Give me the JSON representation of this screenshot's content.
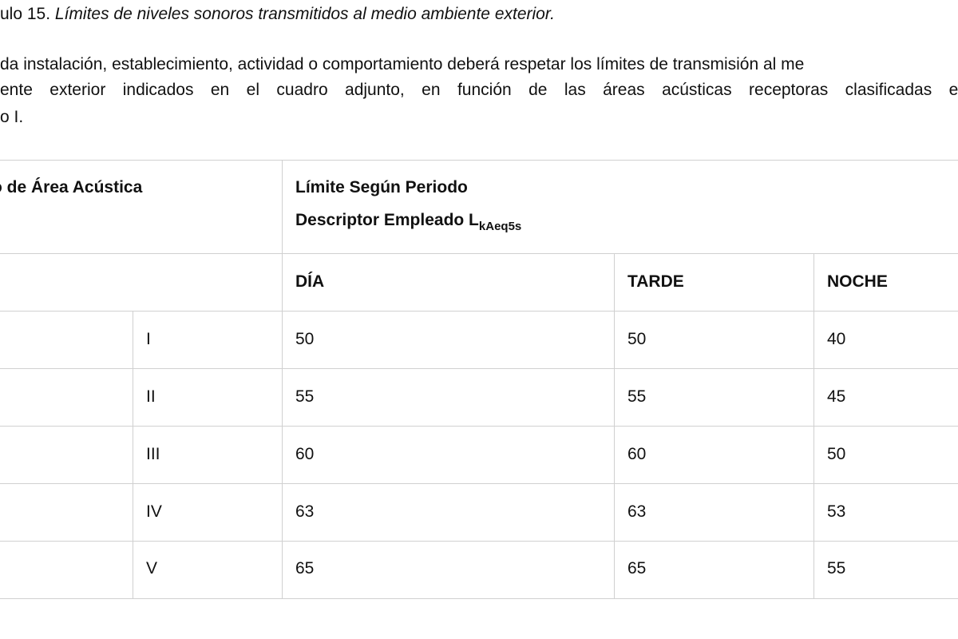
{
  "document": {
    "title_prefix": "ulo 15. ",
    "title_italic": "Límites de niveles sonoros transmitidos al medio ambiente exterior.",
    "paragraph_lines": [
      "da instalación, establecimiento, actividad o comportamiento deberá respetar los límites de transmisión al me",
      "ente exterior indicados en el cuadro adjunto, en función de las áreas acústicas receptoras clasificadas en",
      "o I."
    ]
  },
  "table": {
    "area_header": "o de Área Acústica",
    "limit_header_line1": "Límite Según Periodo",
    "limit_header_line2_main": "Descriptor Empleado L",
    "limit_header_line2_sub": "kAeq5s",
    "period_headers": [
      "DÍA",
      "TARDE",
      "NOCHE"
    ],
    "rows": [
      {
        "area": "I",
        "dia": "50",
        "tarde": "50",
        "noche": "40"
      },
      {
        "area": "II",
        "dia": "55",
        "tarde": "55",
        "noche": "45"
      },
      {
        "area": "III",
        "dia": "60",
        "tarde": "60",
        "noche": "50"
      },
      {
        "area": "IV",
        "dia": "63",
        "tarde": "63",
        "noche": "53"
      },
      {
        "area": "V",
        "dia": "65",
        "tarde": "65",
        "noche": "55"
      }
    ]
  }
}
